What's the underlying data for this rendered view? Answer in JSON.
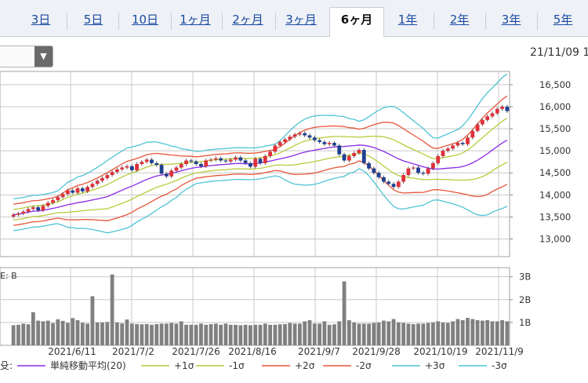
{
  "tabs": [
    {
      "label": "3日",
      "active": false
    },
    {
      "label": "5日",
      "active": false
    },
    {
      "label": "10日",
      "active": false
    },
    {
      "label": "1ヶ月",
      "active": false
    },
    {
      "label": "2ヶ月",
      "active": false
    },
    {
      "label": "3ヶ月",
      "active": false
    },
    {
      "label": "6ヶ月",
      "active": true
    },
    {
      "label": "1年",
      "active": false
    },
    {
      "label": "2年",
      "active": false
    },
    {
      "label": "3年",
      "active": false
    },
    {
      "label": "5年",
      "active": false
    }
  ],
  "select": {
    "icon": "dropdown-arrow-icon"
  },
  "date_stamp": "21/11/09 1",
  "chart_data": {
    "type": "candlestick",
    "price_ticks": [
      "16,500",
      "16,000",
      "15,500",
      "15,000",
      "14,500",
      "14,000",
      "13,500",
      "13,000"
    ],
    "price_tick_values": [
      16500,
      16000,
      15500,
      15000,
      14500,
      14000,
      13500,
      13000
    ],
    "ylim": [
      12600,
      16800
    ],
    "volume_ticks": [
      "3B",
      "2B",
      "1B"
    ],
    "volume_tick_values": [
      3,
      2,
      1
    ],
    "volume_ylim": [
      0,
      3.4
    ],
    "volume_label": "E: B",
    "x_ticks": [
      "2021/6/11",
      "2021/7/2",
      "2021/7/26",
      "2021/8/16",
      "2021/9/7",
      "2021/9/28",
      "2021/10/19",
      "2021/11/9"
    ],
    "grid": true,
    "legend": {
      "prefix": "殳:",
      "items": [
        {
          "label": "単純移動平均(20)",
          "color": "#8a2be2"
        },
        {
          "label": "+1σ",
          "color": "#b8cc3c"
        },
        {
          "label": "-1σ",
          "color": "#b8cc3c"
        },
        {
          "label": "+2σ",
          "color": "#e8553a"
        },
        {
          "label": "-2σ",
          "color": "#e8553a"
        },
        {
          "label": "+3σ",
          "color": "#4fc3d6"
        },
        {
          "label": "-3σ",
          "color": "#4fc3d6"
        }
      ]
    },
    "colors": {
      "up": "#e0303a",
      "down": "#1f3f8f",
      "volume": "#808080"
    },
    "close": [
      13550,
      13580,
      13620,
      13680,
      13720,
      13650,
      13750,
      13820,
      13880,
      13950,
      14020,
      14100,
      14050,
      14150,
      14080,
      14180,
      14250,
      14320,
      14380,
      14450,
      14520,
      14580,
      14620,
      14650,
      14560,
      14700,
      14750,
      14800,
      14720,
      14680,
      14480,
      14420,
      14550,
      14620,
      14700,
      14780,
      14760,
      14700,
      14650,
      14780,
      14800,
      14830,
      14780,
      14760,
      14800,
      14850,
      14780,
      14720,
      14640,
      14820,
      14720,
      14880,
      14980,
      15120,
      15200,
      15260,
      15320,
      15370,
      15400,
      15350,
      15300,
      15240,
      15200,
      15150,
      15180,
      15120,
      14920,
      14780,
      14880,
      14950,
      15020,
      14720,
      14600,
      14500,
      14400,
      14300,
      14250,
      14180,
      14300,
      14450,
      14600,
      14620,
      14500,
      14480,
      14600,
      14720,
      14880,
      15000,
      15050,
      15120,
      15180,
      15150,
      15300,
      15450,
      15600,
      15700,
      15780,
      15850,
      15950,
      16000,
      15900
    ],
    "volume": [
      0.88,
      0.9,
      0.95,
      0.92,
      1.45,
      1.08,
      1.05,
      1.08,
      0.97,
      1.14,
      1.07,
      0.98,
      1.19,
      1.1,
      0.99,
      0.95,
      2.15,
      1.0,
      1.0,
      1.02,
      3.1,
      1.0,
      0.96,
      1.13,
      0.95,
      0.93,
      0.92,
      0.93,
      0.9,
      0.93,
      0.95,
      0.95,
      0.98,
      0.95,
      1.05,
      0.9,
      0.9,
      0.9,
      0.95,
      0.9,
      0.93,
      0.95,
      0.9,
      0.95,
      0.9,
      0.9,
      0.88,
      0.9,
      0.88,
      0.9,
      0.9,
      0.95,
      0.9,
      0.9,
      0.92,
      0.93,
      0.98,
      0.95,
      0.95,
      1.05,
      1.1,
      0.95,
      0.95,
      1.05,
      0.9,
      0.92,
      1.05,
      2.8,
      1.1,
      1.0,
      0.95,
      0.95,
      0.95,
      0.98,
      1.0,
      1.08,
      1.05,
      1.15,
      1.0,
      0.98,
      0.95,
      0.93,
      0.95,
      0.95,
      0.98,
      1.0,
      1.05,
      1.0,
      0.98,
      1.05,
      1.15,
      1.1,
      1.2,
      1.15,
      1.1,
      1.08,
      1.1,
      1.05,
      1.05,
      1.1,
      1.05
    ]
  }
}
